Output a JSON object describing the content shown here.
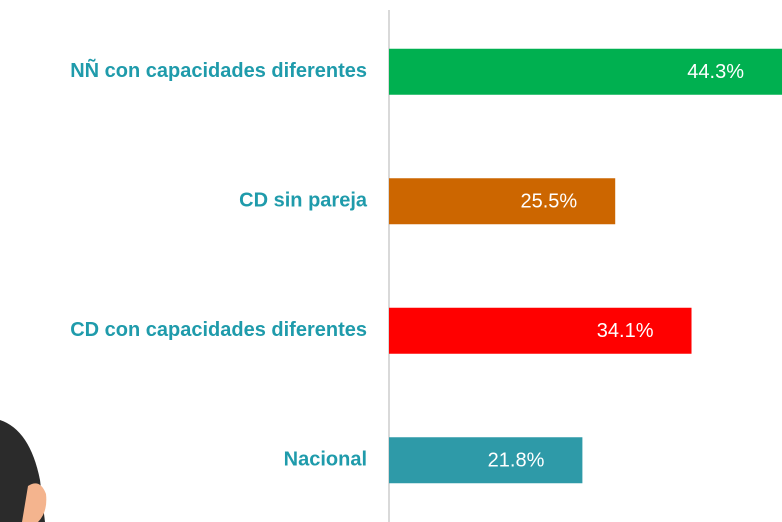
{
  "chart_data": {
    "type": "bar",
    "orientation": "horizontal",
    "categories": [
      "NÑ con capacidades diferentes",
      "CD sin pareja",
      "CD con capacidades diferentes",
      "Nacional"
    ],
    "values": [
      44.3,
      25.5,
      34.1,
      21.8
    ],
    "value_labels": [
      "44.3%",
      "25.5%",
      "34.1%",
      "21.8%"
    ],
    "colors": [
      "#00b050",
      "#cc6600",
      "#ff0000",
      "#2e9aa8"
    ]
  }
}
